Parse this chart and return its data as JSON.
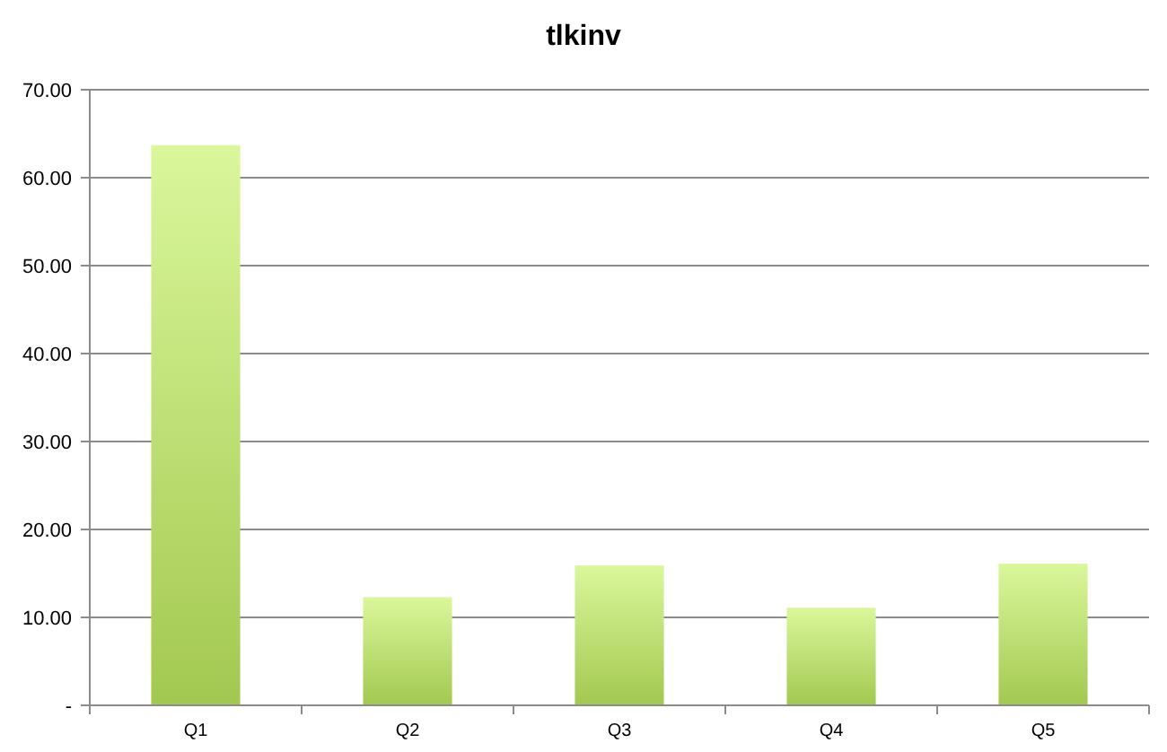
{
  "chart_data": {
    "type": "bar",
    "title": "tlkinv",
    "categories": [
      "Q1",
      "Q2",
      "Q3",
      "Q4",
      "Q5"
    ],
    "values": [
      63.7,
      12.3,
      15.9,
      11.1,
      16.1
    ],
    "color": "#a3c850",
    "ylim": [
      0,
      70
    ],
    "yticks": [
      {
        "value": 0,
        "label": "-"
      },
      {
        "value": 10,
        "label": "10.00"
      },
      {
        "value": 20,
        "label": "20.00"
      },
      {
        "value": 30,
        "label": "30.00"
      },
      {
        "value": 40,
        "label": "40.00"
      },
      {
        "value": 50,
        "label": "50.00"
      },
      {
        "value": 60,
        "label": "60.00"
      },
      {
        "value": 70,
        "label": "70.00"
      }
    ],
    "grid": "y"
  }
}
